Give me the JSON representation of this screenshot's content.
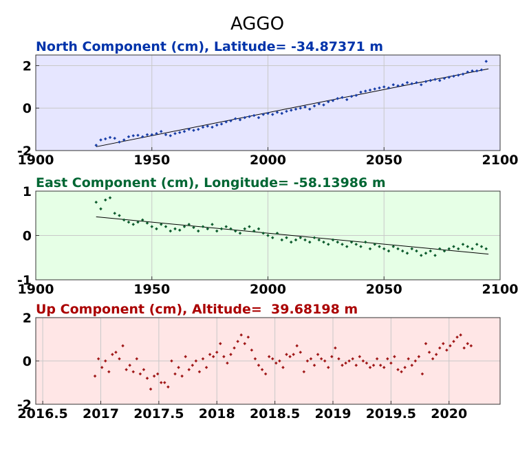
{
  "title": "AGGO",
  "chart_data": [
    {
      "type": "scatter",
      "title": "North Component (cm), Latitude= -34.87371 m",
      "title_color": "#0033aa",
      "background": "#e6e6ff",
      "point_color": "#1a3fa8",
      "xlim": [
        1900,
        2100
      ],
      "ylim": [
        -2,
        2.5
      ],
      "xticks": [
        "1900",
        "1950",
        "2000",
        "2050",
        "2100"
      ],
      "yticks": [
        "-2",
        "0",
        "2"
      ],
      "grid": true,
      "trend": {
        "x": [
          1926,
          2095
        ],
        "y": [
          -1.82,
          1.85
        ]
      },
      "series": [
        {
          "x": [
            1926,
            1928,
            1930,
            1932,
            1934,
            1936,
            1938,
            1940,
            1942,
            1944,
            1946,
            1948,
            1950,
            1952,
            1954,
            1956,
            1958,
            1960,
            1962,
            1964,
            1966,
            1968,
            1970,
            1972,
            1974,
            1976,
            1978,
            1980,
            1982,
            1984,
            1986,
            1988,
            1990,
            1992,
            1994,
            1996,
            1998,
            2000,
            2002,
            2004,
            2006,
            2008,
            2010,
            2012,
            2014,
            2016,
            2018,
            2020,
            2022,
            2024,
            2026,
            2028,
            2030,
            2032,
            2034,
            2036,
            2038,
            2040,
            2042,
            2044,
            2046,
            2048,
            2050,
            2052,
            2054,
            2056,
            2058,
            2060,
            2062,
            2064,
            2066,
            2068,
            2070,
            2072,
            2074,
            2076,
            2078,
            2080,
            2082,
            2084,
            2086,
            2088,
            2090,
            2092,
            2094
          ],
          "y": [
            -1.75,
            -1.5,
            -1.45,
            -1.38,
            -1.42,
            -1.6,
            -1.5,
            -1.35,
            -1.3,
            -1.28,
            -1.35,
            -1.25,
            -1.25,
            -1.2,
            -1.1,
            -1.25,
            -1.3,
            -1.2,
            -1.15,
            -1.1,
            -1.0,
            -1.05,
            -1.0,
            -0.9,
            -0.85,
            -0.9,
            -0.8,
            -0.75,
            -0.65,
            -0.6,
            -0.5,
            -0.55,
            -0.45,
            -0.4,
            -0.35,
            -0.45,
            -0.3,
            -0.25,
            -0.3,
            -0.2,
            -0.25,
            -0.15,
            -0.1,
            -0.05,
            0.0,
            0.05,
            -0.05,
            0.1,
            0.2,
            0.15,
            0.3,
            0.35,
            0.45,
            0.5,
            0.4,
            0.55,
            0.6,
            0.75,
            0.8,
            0.85,
            0.9,
            0.95,
            1.0,
            0.95,
            1.1,
            1.05,
            1.1,
            1.2,
            1.15,
            1.2,
            1.1,
            1.25,
            1.3,
            1.35,
            1.3,
            1.4,
            1.45,
            1.5,
            1.55,
            1.6,
            1.7,
            1.75,
            1.75,
            1.8,
            2.2
          ]
        }
      ]
    },
    {
      "type": "scatter",
      "title": "East Component (cm), Longitude= -58.13986 m",
      "title_color": "#006633",
      "background": "#e6ffe6",
      "point_color": "#0d5c2e",
      "xlim": [
        1900,
        2100
      ],
      "ylim": [
        -1,
        1
      ],
      "xticks": [
        "1900",
        "1950",
        "2000",
        "2050",
        "2100"
      ],
      "yticks": [
        "-1",
        "0",
        "1"
      ],
      "grid": true,
      "trend": {
        "x": [
          1926,
          2095
        ],
        "y": [
          0.42,
          -0.42
        ]
      },
      "series": [
        {
          "x": [
            1926,
            1928,
            1930,
            1932,
            1934,
            1936,
            1938,
            1940,
            1942,
            1944,
            1946,
            1948,
            1950,
            1952,
            1954,
            1956,
            1958,
            1960,
            1962,
            1964,
            1966,
            1968,
            1970,
            1972,
            1974,
            1976,
            1978,
            1980,
            1982,
            1984,
            1986,
            1988,
            1990,
            1992,
            1994,
            1996,
            1998,
            2000,
            2002,
            2004,
            2006,
            2008,
            2010,
            2012,
            2014,
            2016,
            2018,
            2020,
            2022,
            2024,
            2026,
            2028,
            2030,
            2032,
            2034,
            2036,
            2038,
            2040,
            2042,
            2044,
            2046,
            2048,
            2050,
            2052,
            2054,
            2056,
            2058,
            2060,
            2062,
            2064,
            2066,
            2068,
            2070,
            2072,
            2074,
            2076,
            2078,
            2080,
            2082,
            2084,
            2086,
            2088,
            2090,
            2092,
            2094
          ],
          "y": [
            0.75,
            0.6,
            0.8,
            0.85,
            0.5,
            0.45,
            0.35,
            0.3,
            0.25,
            0.3,
            0.35,
            0.28,
            0.2,
            0.15,
            0.25,
            0.2,
            0.1,
            0.15,
            0.12,
            0.2,
            0.25,
            0.18,
            0.1,
            0.2,
            0.15,
            0.25,
            0.1,
            0.15,
            0.2,
            0.15,
            0.1,
            0.05,
            0.15,
            0.2,
            0.1,
            0.15,
            0.05,
            0.0,
            -0.05,
            0.05,
            -0.1,
            -0.05,
            -0.15,
            -0.1,
            -0.05,
            -0.1,
            -0.15,
            -0.05,
            -0.1,
            -0.15,
            -0.2,
            -0.1,
            -0.15,
            -0.2,
            -0.25,
            -0.15,
            -0.2,
            -0.25,
            -0.15,
            -0.3,
            -0.2,
            -0.25,
            -0.3,
            -0.35,
            -0.25,
            -0.3,
            -0.35,
            -0.4,
            -0.3,
            -0.35,
            -0.45,
            -0.4,
            -0.35,
            -0.45,
            -0.3,
            -0.35,
            -0.3,
            -0.25,
            -0.3,
            -0.2,
            -0.25,
            -0.3,
            -0.2,
            -0.25,
            -0.3
          ]
        }
      ]
    },
    {
      "type": "scatter",
      "title": "Up Component (cm), Altitude=  39.68198 m",
      "title_color": "#aa0000",
      "background": "#ffe6e6",
      "point_color": "#a01818",
      "xlim": [
        2016.44,
        2020.44
      ],
      "ylim": [
        -2,
        2
      ],
      "xticks": [
        "2016.5",
        "2017",
        "2017.5",
        "2018",
        "2018.5",
        "2019",
        "2019.5",
        "2020"
      ],
      "yticks": [
        "-2",
        "0",
        "2"
      ],
      "grid": true,
      "series": [
        {
          "x": [
            2016.95,
            2016.98,
            2017.01,
            2017.04,
            2017.07,
            2017.1,
            2017.13,
            2017.16,
            2017.19,
            2017.22,
            2017.25,
            2017.28,
            2017.31,
            2017.34,
            2017.37,
            2017.4,
            2017.43,
            2017.46,
            2017.49,
            2017.52,
            2017.55,
            2017.58,
            2017.61,
            2017.64,
            2017.67,
            2017.7,
            2017.73,
            2017.76,
            2017.79,
            2017.82,
            2017.85,
            2017.88,
            2017.91,
            2017.94,
            2017.97,
            2018.0,
            2018.03,
            2018.06,
            2018.09,
            2018.12,
            2018.15,
            2018.18,
            2018.21,
            2018.24,
            2018.27,
            2018.3,
            2018.33,
            2018.36,
            2018.39,
            2018.42,
            2018.45,
            2018.48,
            2018.51,
            2018.54,
            2018.57,
            2018.6,
            2018.63,
            2018.66,
            2018.69,
            2018.72,
            2018.75,
            2018.78,
            2018.81,
            2018.84,
            2018.87,
            2018.9,
            2018.93,
            2018.96,
            2018.99,
            2019.02,
            2019.05,
            2019.08,
            2019.11,
            2019.14,
            2019.17,
            2019.2,
            2019.23,
            2019.26,
            2019.29,
            2019.32,
            2019.35,
            2019.38,
            2019.41,
            2019.44,
            2019.47,
            2019.5,
            2019.53,
            2019.56,
            2019.59,
            2019.62,
            2019.65,
            2019.68,
            2019.71,
            2019.74,
            2019.77,
            2019.8,
            2019.83,
            2019.86,
            2019.89,
            2019.92,
            2019.95,
            2019.98,
            2020.01,
            2020.04,
            2020.07,
            2020.1,
            2020.13,
            2020.16,
            2020.19
          ],
          "y": [
            -0.7,
            0.1,
            -0.3,
            0.0,
            -0.5,
            0.3,
            0.4,
            0.1,
            0.7,
            -0.4,
            -0.2,
            -0.5,
            0.1,
            -0.6,
            -0.4,
            -0.8,
            -1.3,
            -0.7,
            -0.6,
            -1.0,
            -1.0,
            -1.2,
            0.0,
            -0.6,
            -0.3,
            -0.7,
            0.2,
            -0.4,
            -0.2,
            0.0,
            -0.5,
            0.1,
            -0.3,
            0.3,
            0.2,
            0.4,
            0.8,
            0.2,
            -0.1,
            0.3,
            0.6,
            0.9,
            1.2,
            0.8,
            1.1,
            0.5,
            0.1,
            -0.2,
            -0.4,
            -0.6,
            0.2,
            0.1,
            -0.1,
            0.0,
            -0.3,
            0.3,
            0.2,
            0.3,
            0.7,
            0.4,
            -0.5,
            0.0,
            0.1,
            -0.2,
            0.3,
            0.1,
            0.0,
            -0.3,
            0.2,
            0.6,
            0.1,
            -0.2,
            -0.1,
            0.0,
            0.1,
            -0.2,
            0.2,
            0.0,
            -0.1,
            -0.3,
            -0.2,
            0.1,
            -0.2,
            -0.3,
            0.1,
            -0.1,
            0.2,
            -0.4,
            -0.5,
            -0.3,
            0.1,
            -0.2,
            0.0,
            0.2,
            -0.6,
            0.8,
            0.4,
            0.1,
            0.3,
            0.6,
            0.8,
            0.5,
            0.7,
            0.9,
            1.1,
            1.2,
            0.6,
            0.8,
            0.7
          ]
        }
      ]
    }
  ]
}
